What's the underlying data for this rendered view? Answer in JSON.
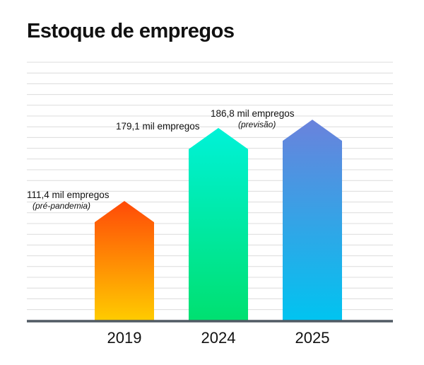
{
  "chart_data": {
    "type": "bar",
    "title": "Estoque de empregos",
    "categories": [
      "2019",
      "2024",
      "2025"
    ],
    "series": [
      {
        "values": [
          111.4,
          179.1,
          186.8
        ]
      }
    ],
    "data_labels": [
      "111,4 mil empregos",
      "179,1 mil empregos",
      "186,8 mil empregos"
    ],
    "annotations": [
      "(pré-pandemia)",
      "",
      "(previsão)"
    ],
    "ylim": [
      0,
      240
    ],
    "grid": true,
    "bar_style": "arrow",
    "colors": {
      "bars": [
        {
          "top": "#ff4a08",
          "bottom": "#ffcc00"
        },
        {
          "top": "#00f2d8",
          "bottom": "#00e070"
        },
        {
          "top": "#6a82dc",
          "bottom": "#00c4f0"
        }
      ],
      "grid": "#dcdcdc",
      "baseline": "#505a64",
      "text": "#111111"
    }
  }
}
